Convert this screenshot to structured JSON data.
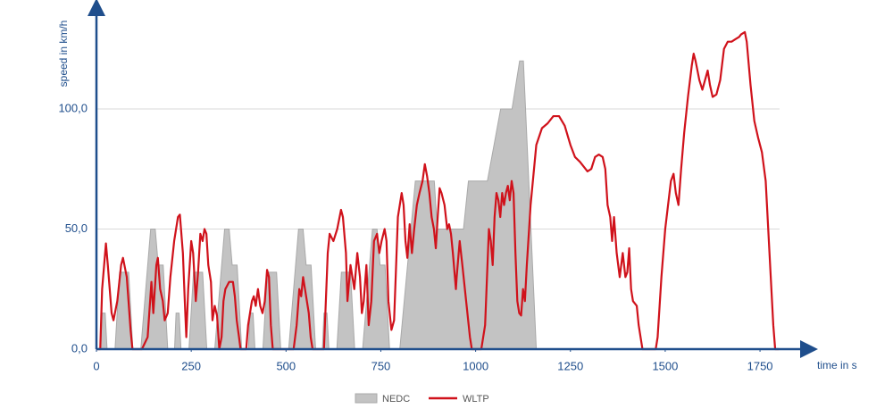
{
  "chart_data": {
    "type": "line",
    "y_label": "speed in km/h",
    "x_label": "time in s",
    "xlim": [
      0,
      1877
    ],
    "ylim": [
      0,
      141
    ],
    "xticks": [
      0,
      250,
      500,
      750,
      1000,
      1250,
      1500,
      1750
    ],
    "yticks": [
      {
        "value": 0,
        "label": "0,0"
      },
      {
        "value": 50,
        "label": "50,0"
      },
      {
        "value": 100,
        "label": "100,0"
      }
    ],
    "grid": true,
    "legend": "bottom",
    "series": [
      {
        "name": "NEDC",
        "color": "#c3c3c3",
        "fill": true,
        "x": [
          0,
          11,
          15,
          23,
          28,
          49,
          61,
          85,
          96,
          117,
          143,
          155,
          163,
          176,
          188,
          195,
          206,
          210,
          218,
          223,
          244,
          256,
          280,
          291,
          312,
          338,
          350,
          358,
          371,
          383,
          390,
          401,
          405,
          413,
          418,
          439,
          451,
          475,
          486,
          507,
          533,
          545,
          553,
          566,
          578,
          585,
          596,
          600,
          608,
          613,
          634,
          646,
          670,
          681,
          702,
          728,
          740,
          748,
          761,
          773,
          780,
          800,
          841,
          891,
          899,
          968,
          981,
          1031,
          1066,
          1096,
          1116,
          1126,
          1160
        ],
        "values": [
          0,
          0,
          15,
          15,
          0,
          0,
          32,
          32,
          0,
          0,
          50,
          50,
          35,
          35,
          0,
          0,
          0,
          15,
          15,
          0,
          0,
          32,
          32,
          0,
          0,
          50,
          50,
          35,
          35,
          0,
          0,
          0,
          15,
          15,
          0,
          0,
          32,
          32,
          0,
          0,
          50,
          50,
          35,
          35,
          0,
          0,
          0,
          15,
          15,
          0,
          0,
          32,
          32,
          0,
          0,
          50,
          50,
          35,
          35,
          0,
          0,
          0,
          70,
          70,
          50,
          50,
          70,
          70,
          100,
          100,
          120,
          120,
          0
        ]
      },
      {
        "name": "WLTP",
        "color": "#d0121b",
        "fill": false,
        "x": [
          0,
          10,
          15,
          25,
          30,
          40,
          45,
          55,
          65,
          70,
          80,
          90,
          95,
          120,
          135,
          145,
          150,
          158,
          162,
          168,
          175,
          180,
          188,
          195,
          205,
          215,
          220,
          228,
          233,
          237,
          242,
          250,
          255,
          262,
          268,
          274,
          280,
          285,
          290,
          295,
          302,
          306,
          312,
          318,
          324,
          330,
          335,
          340,
          350,
          360,
          365,
          370,
          376,
          380,
          395,
          400,
          410,
          415,
          420,
          426,
          432,
          438,
          444,
          450,
          455,
          460,
          465,
          520,
          528,
          535,
          540,
          545,
          550,
          555,
          560,
          565,
          570,
          590,
          600,
          610,
          615,
          625,
          635,
          645,
          650,
          658,
          662,
          670,
          680,
          688,
          695,
          700,
          705,
          712,
          718,
          725,
          732,
          740,
          746,
          752,
          760,
          765,
          770,
          778,
          785,
          795,
          800,
          805,
          810,
          815,
          820,
          826,
          832,
          838,
          845,
          852,
          860,
          866,
          872,
          878,
          884,
          890,
          895,
          900,
          905,
          910,
          918,
          925,
          930,
          935,
          940,
          948,
          950,
          958,
          965,
          975,
          985,
          990,
          1015,
          1025,
          1030,
          1035,
          1040,
          1045,
          1050,
          1055,
          1060,
          1065,
          1070,
          1075,
          1080,
          1085,
          1090,
          1095,
          1100,
          1105,
          1110,
          1115,
          1120,
          1125,
          1130,
          1135,
          1145,
          1160,
          1175,
          1190,
          1205,
          1220,
          1235,
          1250,
          1262,
          1275,
          1285,
          1295,
          1305,
          1315,
          1325,
          1335,
          1342,
          1348,
          1355,
          1360,
          1365,
          1372,
          1380,
          1388,
          1395,
          1400,
          1405,
          1410,
          1415,
          1425,
          1430,
          1440,
          1475,
          1480,
          1490,
          1500,
          1515,
          1522,
          1528,
          1535,
          1542,
          1550,
          1560,
          1570,
          1575,
          1580,
          1590,
          1598,
          1605,
          1612,
          1618,
          1625,
          1635,
          1645,
          1655,
          1665,
          1675,
          1685,
          1695,
          1700,
          1710,
          1715,
          1725,
          1735,
          1745,
          1755,
          1765,
          1775,
          1785,
          1790,
          1800
        ],
        "values": [
          0,
          0,
          25,
          44,
          35,
          15,
          12,
          20,
          35,
          38,
          30,
          8,
          0,
          0,
          5,
          28,
          15,
          35,
          38,
          25,
          20,
          12,
          15,
          30,
          45,
          55,
          56,
          40,
          20,
          5,
          25,
          45,
          40,
          20,
          32,
          48,
          45,
          50,
          48,
          35,
          28,
          12,
          18,
          14,
          0,
          5,
          20,
          25,
          28,
          28,
          22,
          12,
          5,
          0,
          0,
          10,
          20,
          22,
          18,
          25,
          18,
          15,
          20,
          33,
          30,
          10,
          0,
          0,
          10,
          25,
          22,
          30,
          25,
          20,
          15,
          5,
          0,
          0,
          0,
          40,
          48,
          45,
          50,
          58,
          55,
          40,
          20,
          35,
          25,
          40,
          30,
          15,
          20,
          35,
          10,
          20,
          45,
          48,
          40,
          45,
          50,
          45,
          20,
          8,
          12,
          55,
          60,
          65,
          60,
          45,
          38,
          52,
          40,
          50,
          60,
          65,
          70,
          77,
          72,
          65,
          55,
          50,
          42,
          55,
          67,
          65,
          60,
          50,
          52,
          48,
          40,
          25,
          30,
          45,
          35,
          20,
          5,
          0,
          0,
          10,
          30,
          50,
          45,
          35,
          55,
          65,
          62,
          55,
          65,
          60,
          65,
          68,
          62,
          70,
          65,
          40,
          20,
          15,
          14,
          25,
          20,
          35,
          60,
          85,
          92,
          94,
          97,
          97,
          93,
          85,
          80,
          78,
          76,
          74,
          75,
          80,
          81,
          80,
          75,
          60,
          55,
          45,
          55,
          40,
          30,
          40,
          30,
          32,
          42,
          25,
          20,
          18,
          10,
          0,
          0,
          5,
          30,
          50,
          70,
          73,
          65,
          60,
          75,
          90,
          105,
          118,
          123,
          120,
          112,
          108,
          112,
          116,
          110,
          105,
          106,
          112,
          125,
          128,
          128,
          129,
          130,
          131,
          132,
          128,
          110,
          95,
          88,
          82,
          70,
          40,
          10,
          0,
          0
        ]
      }
    ]
  }
}
